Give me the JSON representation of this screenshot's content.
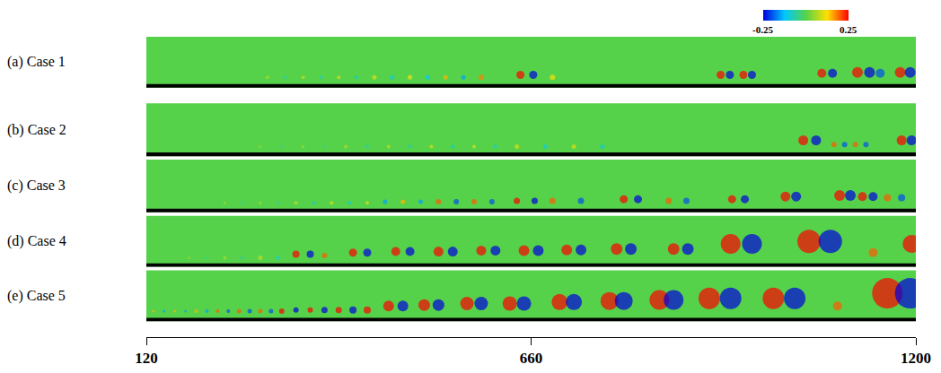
{
  "chart_data": {
    "type": "scatter",
    "xlim": [
      120,
      1200
    ],
    "xticks": [
      120,
      660,
      1200
    ],
    "ylim": [
      0,
      1
    ],
    "tick_labels": "x",
    "grid": false,
    "marker": "circle",
    "color_range": [
      -0.25,
      0.25
    ],
    "color_ticks": [
      -0.25,
      0.25
    ],
    "panels": [
      {
        "label": "(a) Case 1",
        "x": [
          290,
          315,
          340,
          365,
          390,
          415,
          440,
          465,
          490,
          515,
          540,
          565,
          590,
          645,
          663,
          690,
          926,
          939,
          958,
          970,
          1068,
          1083,
          1118,
          1135,
          1150,
          1178,
          1192
        ],
        "y": [
          0.2,
          0.2,
          0.2,
          0.2,
          0.2,
          0.2,
          0.2,
          0.2,
          0.2,
          0.2,
          0.2,
          0.2,
          0.2,
          0.25,
          0.25,
          0.2,
          0.25,
          0.25,
          0.25,
          0.25,
          0.28,
          0.28,
          0.3,
          0.3,
          0.28,
          0.3,
          0.3
        ],
        "values": [
          0.06,
          -0.06,
          0.08,
          -0.08,
          0.1,
          -0.1,
          0.1,
          -0.1,
          0.12,
          -0.12,
          0.15,
          -0.15,
          0.18,
          0.25,
          -0.25,
          0.12,
          0.25,
          -0.25,
          0.25,
          -0.25,
          0.25,
          -0.25,
          0.25,
          -0.25,
          -0.2,
          0.25,
          -0.25
        ],
        "sizes": [
          4,
          4,
          4,
          4,
          4,
          4,
          5,
          5,
          5,
          5,
          5,
          5,
          6,
          9,
          9,
          6,
          9,
          9,
          9,
          9,
          10,
          10,
          12,
          12,
          10,
          12,
          12
        ]
      },
      {
        "label": "(b) Case 2",
        "x": [
          280,
          310,
          340,
          370,
          400,
          430,
          460,
          490,
          520,
          550,
          580,
          610,
          640,
          680,
          720,
          760,
          1042,
          1060,
          1085,
          1100,
          1115,
          1130,
          1180,
          1194
        ],
        "y": [
          0.18,
          0.18,
          0.18,
          0.18,
          0.18,
          0.18,
          0.18,
          0.18,
          0.18,
          0.18,
          0.18,
          0.18,
          0.18,
          0.18,
          0.18,
          0.18,
          0.3,
          0.3,
          0.22,
          0.22,
          0.22,
          0.22,
          0.3,
          0.3
        ],
        "values": [
          0.05,
          -0.05,
          0.06,
          -0.06,
          0.07,
          -0.07,
          0.08,
          -0.08,
          0.1,
          -0.1,
          0.1,
          -0.1,
          0.1,
          -0.1,
          0.1,
          -0.1,
          0.25,
          -0.25,
          0.2,
          -0.2,
          0.2,
          -0.2,
          0.25,
          -0.25
        ],
        "sizes": [
          3,
          3,
          3,
          3,
          4,
          4,
          4,
          4,
          4,
          4,
          4,
          4,
          5,
          5,
          5,
          5,
          11,
          11,
          6,
          6,
          6,
          6,
          11,
          11
        ]
      },
      {
        "label": "(c) Case 3",
        "x": [
          230,
          255,
          280,
          305,
          330,
          355,
          380,
          405,
          430,
          455,
          480,
          505,
          530,
          555,
          580,
          605,
          640,
          665,
          690,
          730,
          790,
          810,
          853,
          878,
          942,
          960,
          1017,
          1032,
          1093,
          1108,
          1125,
          1140,
          1160,
          1180
        ],
        "y": [
          0.18,
          0.18,
          0.18,
          0.18,
          0.18,
          0.18,
          0.18,
          0.18,
          0.18,
          0.2,
          0.2,
          0.2,
          0.2,
          0.2,
          0.2,
          0.2,
          0.22,
          0.22,
          0.22,
          0.22,
          0.25,
          0.25,
          0.22,
          0.22,
          0.25,
          0.25,
          0.3,
          0.3,
          0.32,
          0.32,
          0.3,
          0.3,
          0.28,
          0.28
        ],
        "values": [
          0.06,
          -0.06,
          0.07,
          -0.07,
          0.08,
          -0.08,
          0.1,
          -0.1,
          0.1,
          -0.15,
          0.15,
          -0.15,
          0.2,
          -0.2,
          0.2,
          -0.2,
          0.25,
          -0.25,
          0.2,
          -0.2,
          0.25,
          -0.25,
          0.2,
          -0.2,
          0.25,
          -0.25,
          0.25,
          -0.25,
          0.25,
          -0.25,
          0.25,
          -0.25,
          0.2,
          -0.2
        ],
        "sizes": [
          3,
          3,
          3,
          3,
          4,
          4,
          4,
          4,
          4,
          5,
          5,
          5,
          6,
          6,
          6,
          6,
          7,
          7,
          7,
          7,
          9,
          9,
          7,
          7,
          9,
          9,
          11,
          11,
          12,
          12,
          10,
          10,
          8,
          8
        ]
      },
      {
        "label": "(d) Case 4",
        "x": [
          180,
          205,
          230,
          255,
          280,
          305,
          330,
          350,
          370,
          410,
          430,
          470,
          490,
          530,
          550,
          590,
          610,
          650,
          670,
          710,
          730,
          780,
          800,
          860,
          880,
          940,
          970,
          1050,
          1080,
          1140,
          1194
        ],
        "y": [
          0.18,
          0.18,
          0.18,
          0.18,
          0.18,
          0.18,
          0.25,
          0.25,
          0.22,
          0.28,
          0.28,
          0.3,
          0.3,
          0.3,
          0.3,
          0.32,
          0.32,
          0.32,
          0.32,
          0.33,
          0.33,
          0.35,
          0.35,
          0.35,
          0.35,
          0.45,
          0.45,
          0.5,
          0.5,
          0.28,
          0.45
        ],
        "values": [
          0.05,
          -0.05,
          0.06,
          -0.06,
          0.08,
          -0.08,
          0.25,
          -0.25,
          0.2,
          0.25,
          -0.25,
          0.25,
          -0.25,
          0.25,
          -0.25,
          0.25,
          -0.25,
          0.25,
          -0.25,
          0.25,
          -0.25,
          0.25,
          -0.25,
          0.25,
          -0.25,
          0.25,
          -0.25,
          0.25,
          -0.25,
          0.2,
          0.25
        ],
        "sizes": [
          3,
          3,
          4,
          4,
          5,
          5,
          8,
          8,
          6,
          9,
          9,
          10,
          10,
          11,
          11,
          11,
          11,
          12,
          12,
          12,
          12,
          13,
          13,
          13,
          13,
          22,
          22,
          26,
          26,
          10,
          20
        ]
      },
      {
        "label": "(e) Case 5",
        "x": [
          130,
          145,
          160,
          175,
          190,
          205,
          220,
          235,
          250,
          265,
          280,
          295,
          310,
          330,
          350,
          370,
          390,
          410,
          430,
          460,
          480,
          510,
          530,
          570,
          590,
          630,
          650,
          700,
          720,
          770,
          790,
          840,
          860,
          910,
          940,
          1000,
          1030,
          1090,
          1160,
          1192
        ],
        "y": [
          0.2,
          0.2,
          0.2,
          0.2,
          0.2,
          0.2,
          0.2,
          0.2,
          0.2,
          0.2,
          0.2,
          0.2,
          0.2,
          0.22,
          0.22,
          0.22,
          0.22,
          0.22,
          0.22,
          0.3,
          0.3,
          0.32,
          0.32,
          0.35,
          0.35,
          0.35,
          0.35,
          0.38,
          0.38,
          0.4,
          0.4,
          0.42,
          0.42,
          0.45,
          0.45,
          0.45,
          0.45,
          0.3,
          0.55,
          0.55
        ],
        "values": [
          0.15,
          -0.15,
          0.15,
          -0.15,
          0.15,
          -0.15,
          0.2,
          -0.2,
          0.2,
          -0.2,
          0.2,
          -0.2,
          0.25,
          -0.25,
          0.25,
          -0.25,
          0.25,
          -0.25,
          0.25,
          0.25,
          -0.25,
          0.25,
          -0.25,
          0.25,
          -0.25,
          0.25,
          -0.25,
          0.25,
          -0.25,
          0.25,
          -0.25,
          0.25,
          -0.25,
          0.25,
          -0.25,
          0.25,
          -0.25,
          0.2,
          0.25,
          -0.25
        ],
        "sizes": [
          3,
          3,
          3,
          3,
          4,
          4,
          4,
          4,
          5,
          5,
          5,
          5,
          6,
          6,
          6,
          7,
          7,
          8,
          8,
          12,
          12,
          13,
          13,
          15,
          15,
          16,
          16,
          18,
          18,
          20,
          20,
          22,
          22,
          24,
          24,
          24,
          24,
          10,
          34,
          34
        ]
      }
    ]
  }
}
